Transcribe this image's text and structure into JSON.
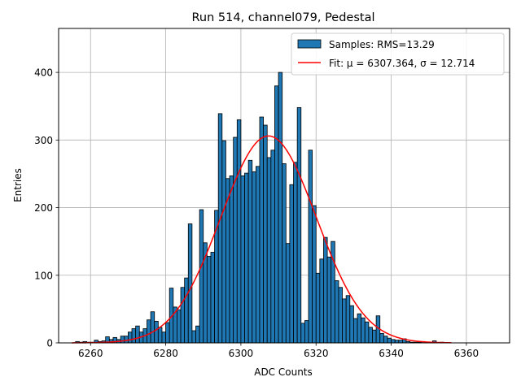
{
  "chart_data": {
    "type": "bar",
    "title": "Run 514, channel079, Pedestal",
    "xlabel": "ADC Counts",
    "ylabel": "Entries",
    "xlim": [
      6251.5,
      6371.5
    ],
    "ylim": [
      0,
      465
    ],
    "xticks": [
      6260,
      6280,
      6300,
      6320,
      6340,
      6360
    ],
    "yticks": [
      0,
      100,
      200,
      300,
      400
    ],
    "grid": true,
    "legend_position": "top-right",
    "colors": {
      "bar_fill": "#1f77b4",
      "bar_edge": "#000000",
      "fit_line": "#ff0000"
    },
    "histogram": {
      "name": "Samples: RMS=13.29",
      "bin_width": 1,
      "bin_start": 6256,
      "counts": [
        2,
        1,
        2,
        1,
        1,
        4,
        2,
        3,
        9,
        5,
        8,
        5,
        10,
        10,
        16,
        21,
        25,
        16,
        21,
        34,
        46,
        32,
        23,
        16,
        30,
        81,
        53,
        49,
        82,
        96,
        176,
        18,
        25,
        197,
        148,
        128,
        134,
        196,
        339,
        299,
        243,
        247,
        304,
        330,
        247,
        251,
        270,
        253,
        261,
        334,
        322,
        274,
        285,
        380,
        400,
        265,
        147,
        234,
        267,
        348,
        29,
        33,
        285,
        203,
        103,
        124,
        156,
        127,
        150,
        92,
        82,
        65,
        70,
        55,
        36,
        43,
        37,
        31,
        23,
        19,
        40,
        14,
        10,
        7,
        5,
        4,
        4,
        6,
        2,
        1,
        1,
        1,
        2,
        1,
        1,
        3,
        0,
        1
      ]
    },
    "fit": {
      "name": "Fit: μ = 6307.364, σ = 12.714",
      "mu": 6307.364,
      "sigma": 12.714,
      "amplitude": 306,
      "x_range": [
        6255,
        6356
      ]
    }
  }
}
